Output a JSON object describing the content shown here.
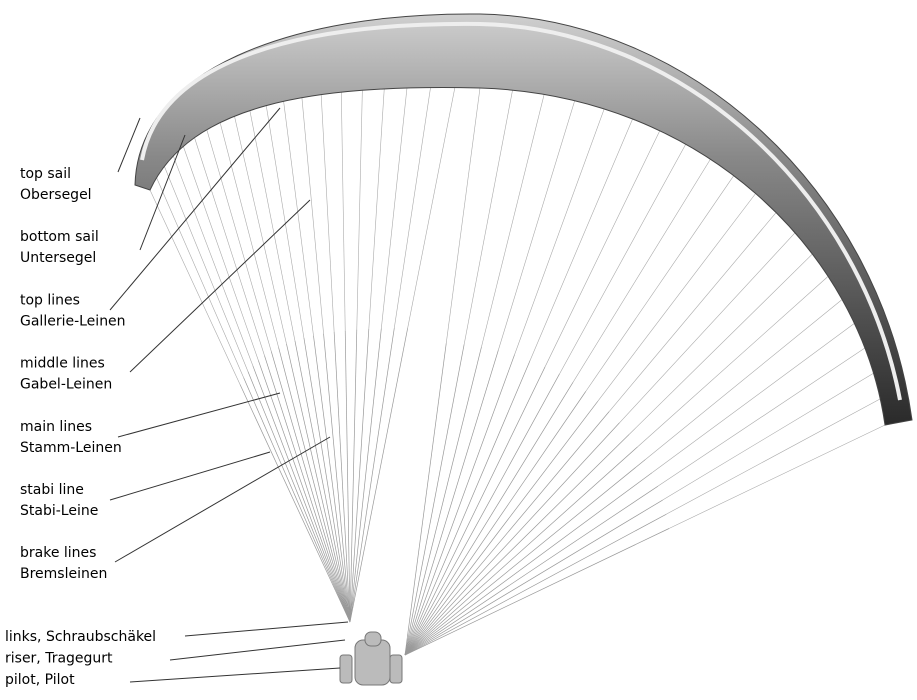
{
  "labels": [
    {
      "en": "top sail",
      "de": "Obersegel"
    },
    {
      "en": "bottom sail",
      "de": "Untersegel"
    },
    {
      "en": "top lines",
      "de": "Gallerie-Leinen"
    },
    {
      "en": "middle lines",
      "de": "Gabel-Leinen"
    },
    {
      "en": "main lines",
      "de": "Stamm-Leinen"
    },
    {
      "en": "stabi line",
      "de": "Stabi-Leine"
    },
    {
      "en": "brake lines",
      "de": "Bremsleinen"
    }
  ],
  "bottom_labels": [
    "links, Schraubschäkel",
    "riser, Tragegurt",
    "pilot, Pilot"
  ]
}
